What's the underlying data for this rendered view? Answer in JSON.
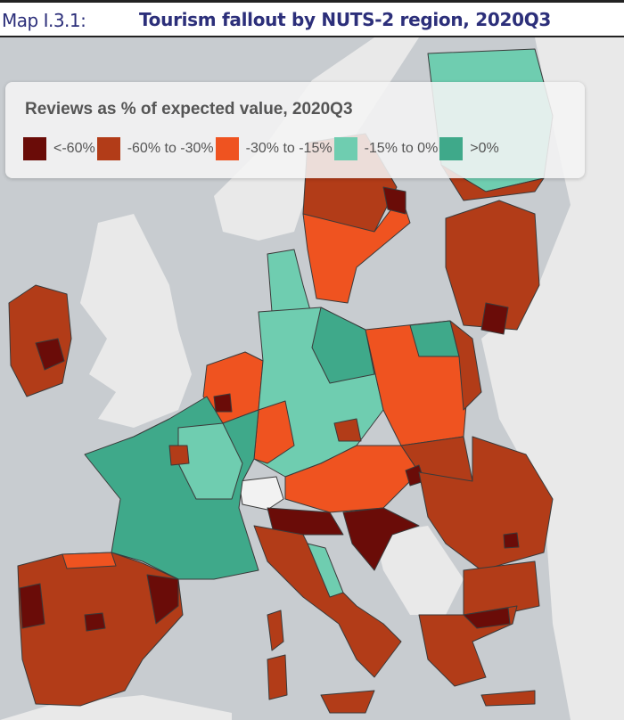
{
  "header": {
    "label": "Map I.3.1:",
    "title": "Tourism fallout by NUTS-2 region, 2020Q3"
  },
  "legend": {
    "title": "Reviews as % of expected value, 2020Q3",
    "items": [
      {
        "label": "<-60%",
        "color": "#6a0c08"
      },
      {
        "label": "-60% to -30%",
        "color": "#b23c18"
      },
      {
        "label": "-30% to -15%",
        "color": "#ef5320"
      },
      {
        "label": "-15% to 0%",
        "color": "#6fcdb0"
      },
      {
        "label": ">0%",
        "color": "#3fa98a"
      }
    ]
  },
  "colors": {
    "sea": "#c8ccd0",
    "non_eu_land": "#e9e9e9",
    "border": "#3a3a3a"
  }
}
